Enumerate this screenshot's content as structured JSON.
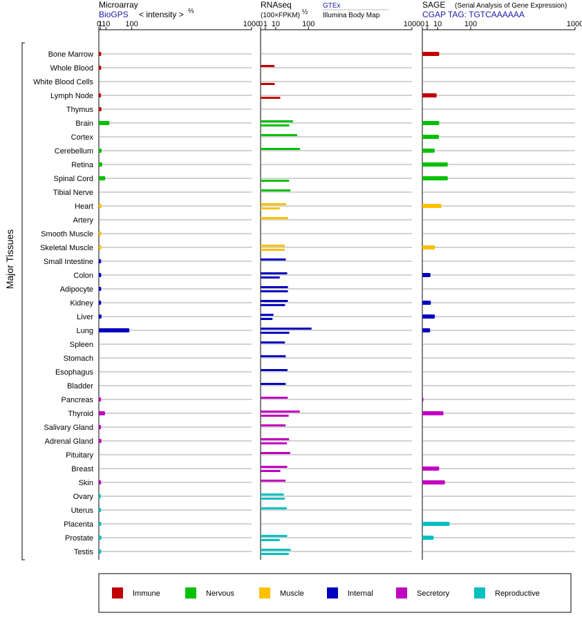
{
  "headers": {
    "microarray": "Microarray",
    "biogps": "BioGPS",
    "intensity_label": "< intensity >",
    "intensity_exp": "⅔",
    "rnaseq": "RNAseq",
    "fpkm_label": "(100×FPKM)",
    "fpkm_exp": "½",
    "gtex": "GTEx",
    "illumina": "Illumina Body Map",
    "sage": "SAGE",
    "sage_desc": "(Serial Analysis of Gene Expression)",
    "cgap_tag": "CGAP TAG: TGTCAAAAAA"
  },
  "axis_ticks": {
    "microarray": [
      "0",
      "1",
      "10",
      "100",
      "1000"
    ],
    "rnaseq": [
      "0",
      "1",
      "10",
      "100",
      "1000"
    ],
    "sage": [
      "0",
      "1",
      "10",
      "100",
      "1000"
    ]
  },
  "y_group_label": "Major Tissues",
  "legend": [
    {
      "label": "Immune",
      "color": "#c00000"
    },
    {
      "label": "Nervous",
      "color": "#00c000"
    },
    {
      "label": "Muscle",
      "color": "#ffc000"
    },
    {
      "label": "Internal",
      "color": "#0000c0"
    },
    {
      "label": "Secretory",
      "color": "#c000c0"
    },
    {
      "label": "Reproductive",
      "color": "#00c0c0"
    }
  ],
  "chart_data": {
    "type": "bar",
    "orientation": "horizontal",
    "x_scale": "power",
    "xlim": [
      0,
      1000
    ],
    "panels": [
      "Microarray",
      "RNAseq",
      "SAGE"
    ],
    "categories": [
      "Bone Marrow",
      "Whole Blood",
      "White Blood Cells",
      "Lymph Node",
      "Thymus",
      "Brain",
      "Cortex",
      "Cerebellum",
      "Retina",
      "Spinal Cord",
      "Tibial Nerve",
      "Heart",
      "Artery",
      "Smooth Muscle",
      "Skeletal Muscle",
      "Small Intestine",
      "Colon",
      "Adipocyte",
      "Kidney",
      "Liver",
      "Lung",
      "Spleen",
      "Stomach",
      "Esophagus",
      "Bladder",
      "Pancreas",
      "Thyroid",
      "Salivary Gland",
      "Adrenal Gland",
      "Pituitary",
      "Breast",
      "Skin",
      "Ovary",
      "Uterus",
      "Placenta",
      "Prostate",
      "Testis"
    ],
    "groups": [
      "Immune",
      "Immune",
      "Immune",
      "Immune",
      "Immune",
      "Nervous",
      "Nervous",
      "Nervous",
      "Nervous",
      "Nervous",
      "Nervous",
      "Muscle",
      "Muscle",
      "Muscle",
      "Muscle",
      "Internal",
      "Internal",
      "Internal",
      "Internal",
      "Internal",
      "Internal",
      "Internal",
      "Internal",
      "Internal",
      "Internal",
      "Secretory",
      "Secretory",
      "Secretory",
      "Secretory",
      "Secretory",
      "Secretory",
      "Secretory",
      "Reproductive",
      "Reproductive",
      "Reproductive",
      "Reproductive",
      "Reproductive"
    ],
    "microarray": [
      1.9,
      1.9,
      null,
      1.7,
      2.2,
      18.1,
      null,
      2.5,
      3.3,
      8.5,
      null,
      2.4,
      null,
      1.9,
      2.1,
      1.8,
      1.9,
      1.9,
      1.8,
      2.3,
      89.2,
      null,
      null,
      null,
      null,
      1.7,
      8.1,
      1.7,
      2.2,
      null,
      null,
      1.8,
      1.5,
      1.7,
      1.9,
      2.2,
      1.9
    ],
    "rnaseq_gtex": [
      null,
      8.4,
      null,
      null,
      null,
      45.7,
      58.5,
      67.8,
      null,
      null,
      38.6,
      28.8,
      32.8,
      null,
      25.5,
      27.7,
      30.9,
      32.6,
      32.5,
      7.2,
      113.2,
      25.9,
      27.5,
      31.6,
      27.5,
      32.3,
      66.9,
      27.1,
      35.4,
      38.1,
      30.9,
      27.1,
      23.4,
      29.9,
      null,
      30.8,
      39.4
    ],
    "rnaseq_illumina": [
      null,
      null,
      8.7,
      16.9,
      null,
      35.9,
      null,
      null,
      null,
      35.5,
      null,
      16.0,
      null,
      null,
      25.5,
      null,
      16.0,
      32.6,
      26.1,
      6.2,
      35.9,
      null,
      null,
      null,
      null,
      null,
      34.4,
      null,
      30.1,
      null,
      17.1,
      null,
      25.5,
      null,
      null,
      16.0,
      34.7
    ],
    "sage": [
      12.2,
      null,
      null,
      8.8,
      null,
      12.2,
      11.8,
      6.5,
      27.7,
      27.7,
      null,
      15.5,
      null,
      null,
      6.9,
      null,
      2.8,
      null,
      3.1,
      6.7,
      2.6,
      null,
      null,
      null,
      null,
      0.01,
      19.1,
      null,
      null,
      null,
      12.2,
      21.9,
      null,
      null,
      31.9,
      5.5,
      null
    ]
  }
}
